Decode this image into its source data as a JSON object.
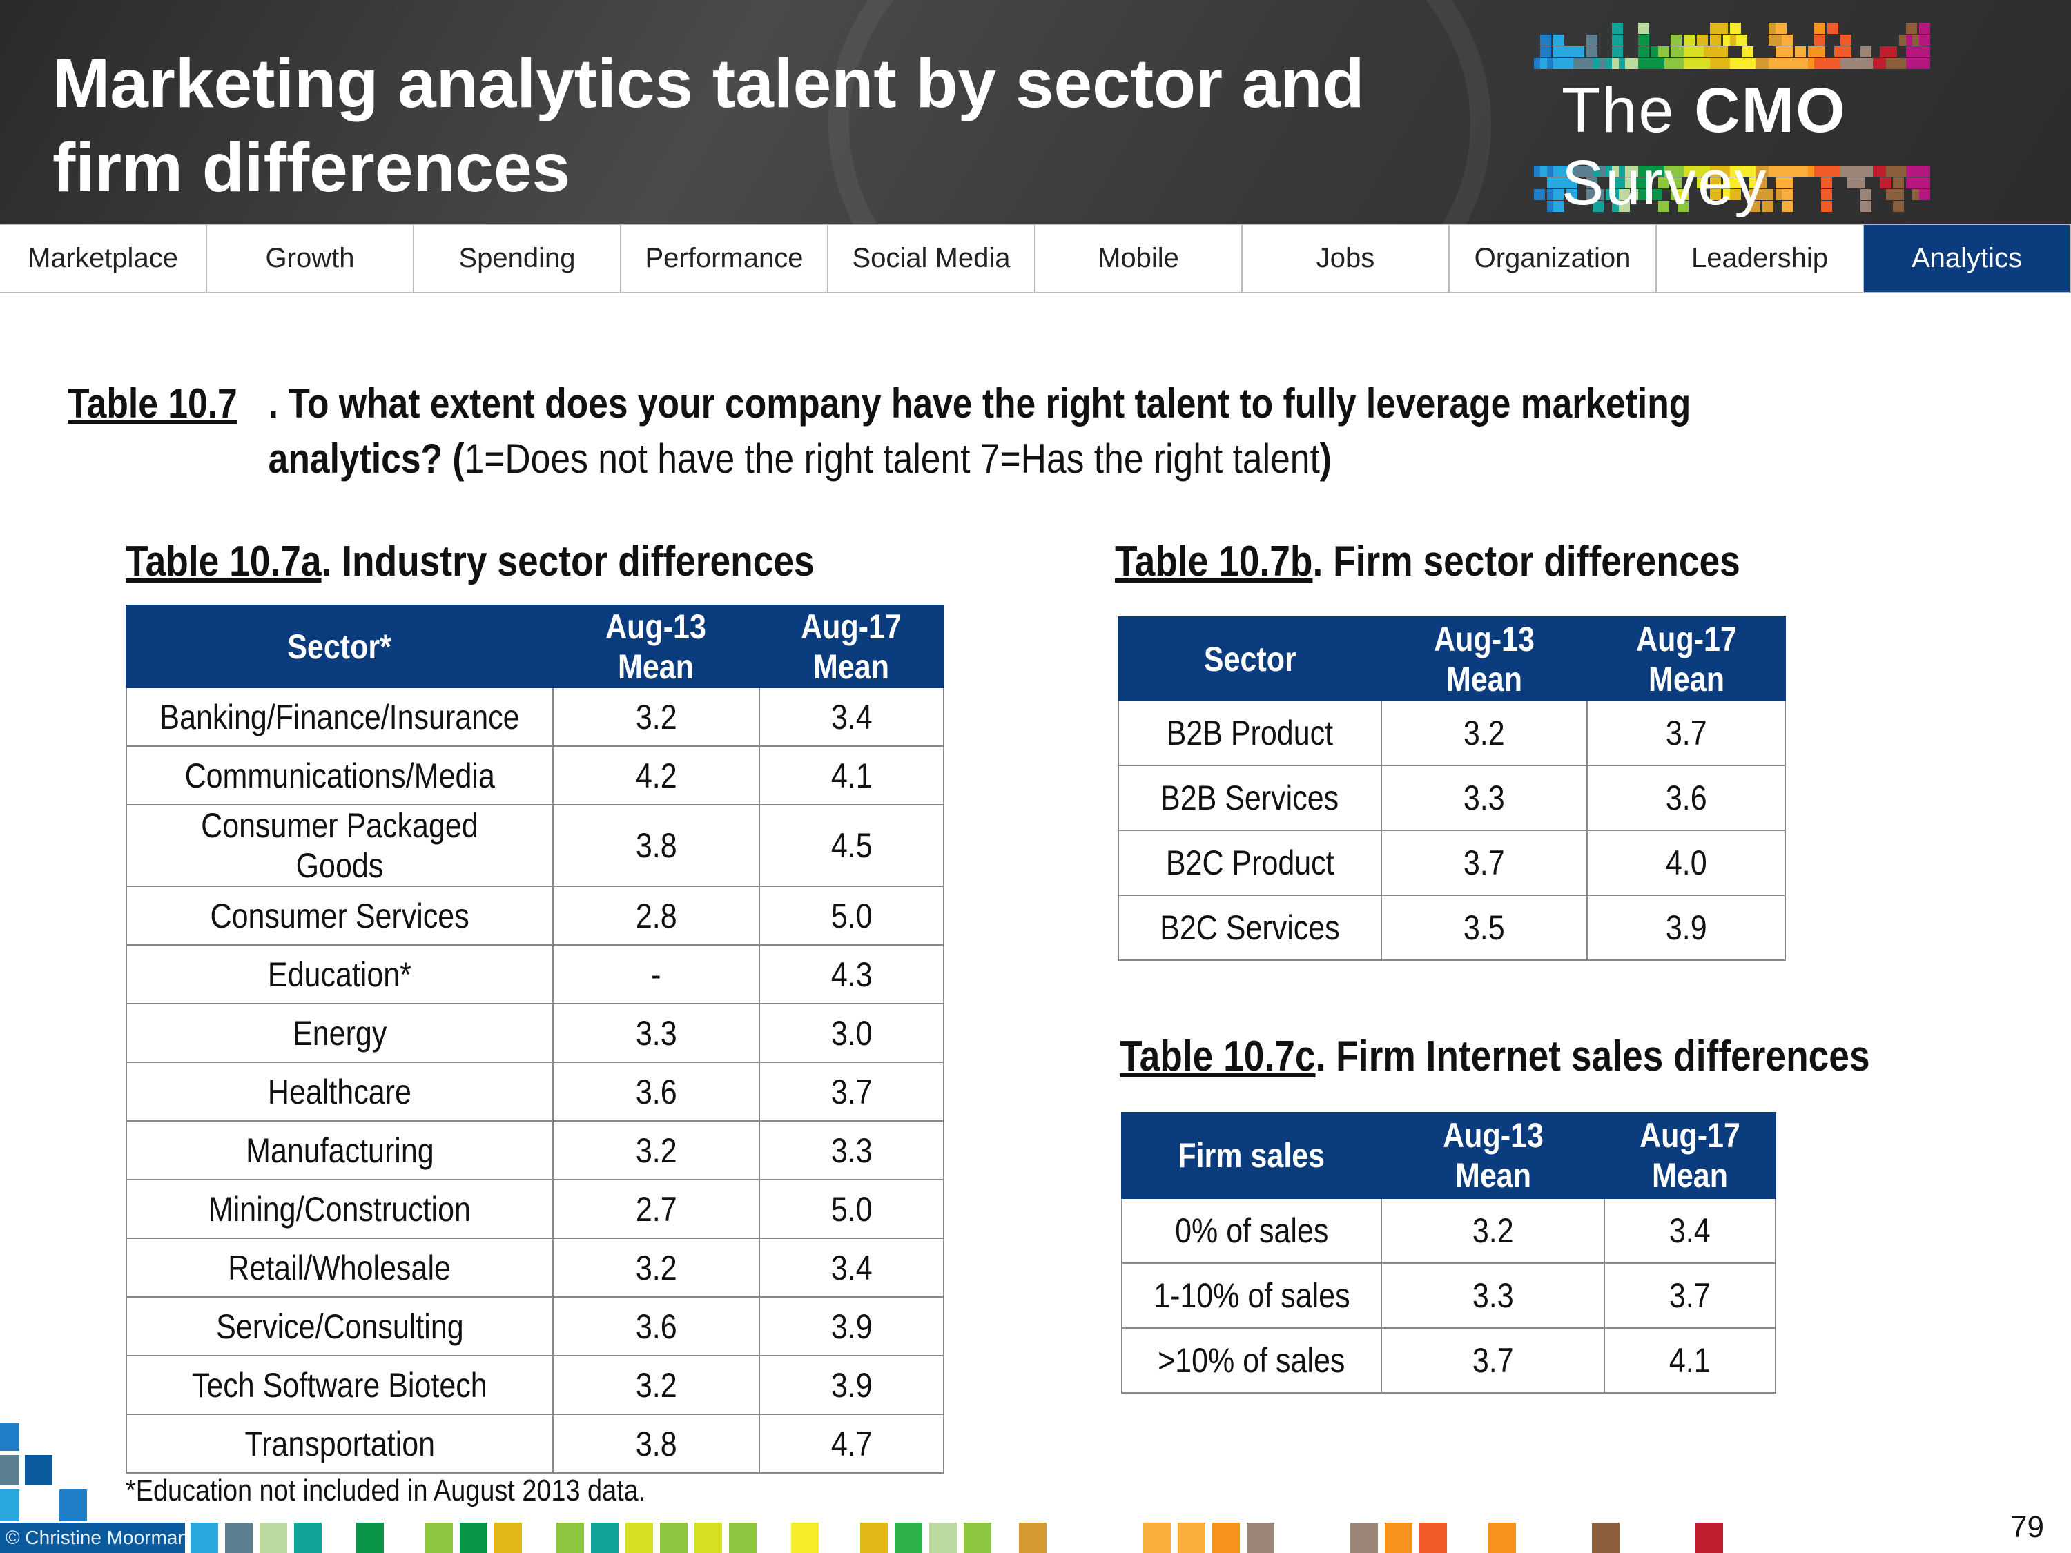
{
  "header": {
    "title_line1": "Marketing analytics talent by sector and",
    "title_line2": "firm differences",
    "logo": {
      "pre": "The ",
      "bold": "CMO",
      "post": " Survey"
    },
    "palette": [
      "#1e7fc8",
      "#29a8e0",
      "#5b7f8f",
      "#12a39a",
      "#bcd9a0",
      "#0a9447",
      "#8cc63f",
      "#d7df23",
      "#e2b818",
      "#f7eb2a",
      "#d69a33",
      "#f9ae3c",
      "#f7941d",
      "#f15a29",
      "#9b8579",
      "#be1e2d",
      "#8b5e3c",
      "#b5177f"
    ]
  },
  "nav": {
    "tabs": [
      {
        "label": "Marketplace"
      },
      {
        "label": "Growth"
      },
      {
        "label": "Spending"
      },
      {
        "label": "Performance"
      },
      {
        "label": "Social Media"
      },
      {
        "label": "Mobile"
      },
      {
        "label": "Jobs"
      },
      {
        "label": "Organization"
      },
      {
        "label": "Leadership"
      },
      {
        "label": "Analytics",
        "active": true
      }
    ],
    "active_color": "#0b3d7e"
  },
  "main": {
    "table_label": "Table 10.7",
    "question_line1": "To what extent does your company have the right talent to fully leverage marketing",
    "question_line2_bold": "analytics? (",
    "question_line2_scale": "1=Does not have the right talent 7=Has the right talent",
    "question_line2_end": ")",
    "table_a": {
      "label": "Table 10.7a",
      "title": ". Industry sector differences",
      "headers": [
        "Sector*",
        "Aug-13 Mean",
        "Aug-17 Mean"
      ],
      "rows": [
        [
          "Banking/Finance/Insurance",
          "3.2",
          "3.4"
        ],
        [
          "Communications/Media",
          "4.2",
          "4.1"
        ],
        [
          "Consumer Packaged Goods",
          "3.8",
          "4.5"
        ],
        [
          "Consumer Services",
          "2.8",
          "5.0"
        ],
        [
          "Education*",
          "-",
          "4.3"
        ],
        [
          "Energy",
          "3.3",
          "3.0"
        ],
        [
          "Healthcare",
          "3.6",
          "3.7"
        ],
        [
          "Manufacturing",
          "3.2",
          "3.3"
        ],
        [
          "Mining/Construction",
          "2.7",
          "5.0"
        ],
        [
          "Retail/Wholesale",
          "3.2",
          "3.4"
        ],
        [
          "Service/Consulting",
          "3.6",
          "3.9"
        ],
        [
          "Tech Software Biotech",
          "3.2",
          "3.9"
        ],
        [
          "Transportation",
          "3.8",
          "4.7"
        ]
      ],
      "footnote": "*Education not included in August 2013 data."
    },
    "table_b": {
      "label": "Table 10.7b",
      "title": ". Firm sector differences",
      "headers": [
        "Sector",
        "Aug-13 Mean",
        "Aug-17 Mean"
      ],
      "rows": [
        [
          "B2B Product",
          "3.2",
          "3.7"
        ],
        [
          "B2B Services",
          "3.3",
          "3.6"
        ],
        [
          "B2C Product",
          "3.7",
          "4.0"
        ],
        [
          "B2C Services",
          "3.5",
          "3.9"
        ]
      ]
    },
    "table_c": {
      "label": "Table 10.7c",
      "title": ". Firm Internet sales differences",
      "headers": [
        "Firm sales",
        "Aug-13 Mean",
        "Aug-17 Mean"
      ],
      "rows": [
        [
          "0% of sales",
          "3.2",
          "3.4"
        ],
        [
          "1-10% of sales",
          "3.3",
          "3.7"
        ],
        [
          ">10% of sales",
          "3.7",
          "4.1"
        ]
      ]
    }
  },
  "footer": {
    "credit": "© Christine Moorman",
    "page_number": "79"
  }
}
